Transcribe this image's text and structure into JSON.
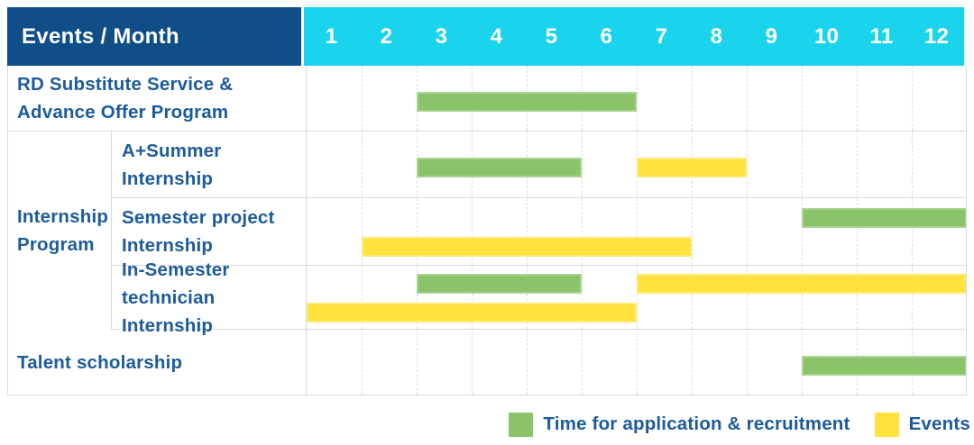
{
  "colors": {
    "header_bg": "#0f4e87",
    "months_bg": "#1ad3ec",
    "label_text": "#1b5b9b",
    "grid_line": "#dddddd",
    "recruitment_green": "#8ac36a",
    "events_yellow": "#ffe23e"
  },
  "header": {
    "label": "Events / Month",
    "months": [
      "1",
      "2",
      "3",
      "4",
      "5",
      "6",
      "7",
      "8",
      "9",
      "10",
      "11",
      "12"
    ]
  },
  "group_label": "Internship\nProgram",
  "chart_data": {
    "type": "bar",
    "subtype": "gantt-timeline",
    "title": "",
    "x_unit": "month",
    "x_ticks": [
      1,
      2,
      3,
      4,
      5,
      6,
      7,
      8,
      9,
      10,
      11,
      12
    ],
    "x_range": [
      1,
      12
    ],
    "grid": "vertical-dashed",
    "legend_position": "bottom-right",
    "rows": [
      {
        "group": "",
        "label": "RD Substitute Service &\nAdvance Offer Program",
        "bars": [
          {
            "series": "recruitment",
            "start_month": 3,
            "end_month": 6,
            "level": "middle"
          }
        ]
      },
      {
        "group": "Internship Program",
        "label": "A+Summer\nInternship",
        "bars": [
          {
            "series": "recruitment",
            "start_month": 3,
            "end_month": 5,
            "level": "middle"
          },
          {
            "series": "events",
            "start_month": 7,
            "end_month": 8,
            "level": "middle"
          }
        ]
      },
      {
        "group": "Internship Program",
        "label": "Semester project\nInternship",
        "bars": [
          {
            "series": "recruitment",
            "start_month": 10,
            "end_month": 12,
            "level": "upper"
          },
          {
            "series": "events",
            "start_month": 2,
            "end_month": 7,
            "level": "lower"
          }
        ]
      },
      {
        "group": "Internship Program",
        "label": "In-Semester\ntechnician Internship",
        "bars": [
          {
            "series": "recruitment",
            "start_month": 3,
            "end_month": 5,
            "level": "upper"
          },
          {
            "series": "events",
            "start_month": 7,
            "end_month": 12,
            "level": "upper"
          },
          {
            "series": "events",
            "start_month": 1,
            "end_month": 6,
            "level": "lower"
          }
        ]
      },
      {
        "group": "",
        "label": "Talent scholarship",
        "bars": [
          {
            "series": "recruitment",
            "start_month": 10,
            "end_month": 12,
            "level": "middle"
          }
        ]
      }
    ],
    "legend": [
      {
        "id": "recruitment",
        "label": "Time for application & recruitment",
        "color": "#8ac36a"
      },
      {
        "id": "events",
        "label": "Events",
        "color": "#ffe23e"
      }
    ]
  }
}
